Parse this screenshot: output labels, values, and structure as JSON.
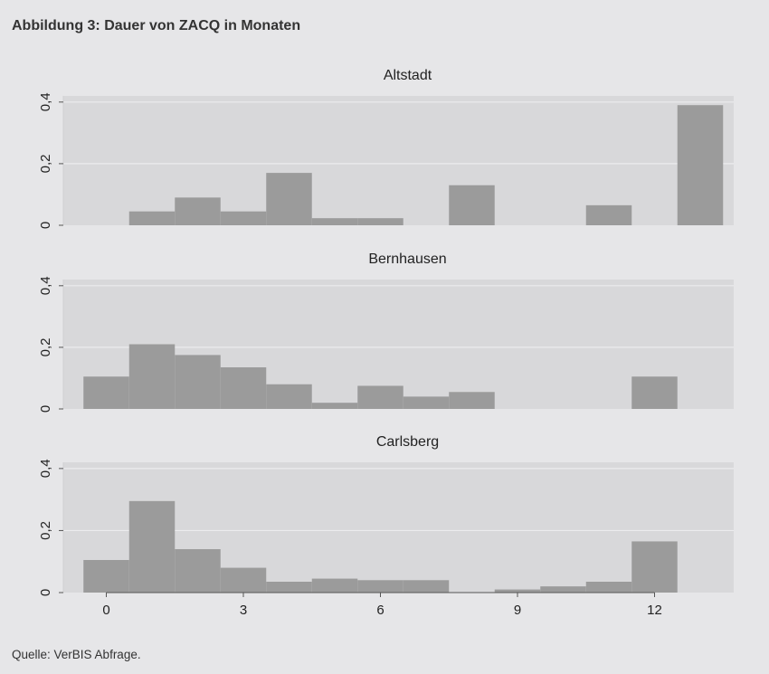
{
  "figure": {
    "title": "Abbildung 3: Dauer von ZACQ in Monaten",
    "source": "Quelle: VerBIS Abfrage."
  },
  "colors": {
    "page_background": "#e6e6e8",
    "plot_background": "#d8d8da",
    "bar_fill": "#9b9b9b",
    "gridline": "#ececee"
  },
  "chart_data": {
    "type": "bar",
    "subtype": "histogram-by-group",
    "x_categories": [
      0,
      1,
      2,
      3,
      4,
      5,
      6,
      7,
      8,
      9,
      10,
      11,
      12,
      13
    ],
    "x_ticks": [
      0,
      3,
      6,
      9,
      12
    ],
    "x_tick_labels": [
      "0",
      "3",
      "6",
      "9",
      "12"
    ],
    "y_ticks": [
      0,
      0.2,
      0.4
    ],
    "y_tick_labels": [
      "0",
      "0,2",
      "0,4"
    ],
    "ylim": [
      0,
      0.42
    ],
    "xlabel": "",
    "ylabel": "",
    "grid": true,
    "panels": [
      {
        "name": "Altstadt",
        "values": [
          0,
          0.045,
          0.09,
          0.045,
          0.17,
          0.023,
          0.023,
          0,
          0.13,
          0,
          0,
          0.065,
          0,
          0.39
        ]
      },
      {
        "name": "Bernhausen",
        "values": [
          0.105,
          0.21,
          0.175,
          0.135,
          0.08,
          0.02,
          0.075,
          0.04,
          0.055,
          0,
          0,
          0,
          0.105,
          0
        ]
      },
      {
        "name": "Carlsberg",
        "values": [
          0.105,
          0.295,
          0.14,
          0.08,
          0.035,
          0.045,
          0.04,
          0.04,
          0,
          0.01,
          0.02,
          0.035,
          0.165,
          0
        ]
      }
    ]
  }
}
